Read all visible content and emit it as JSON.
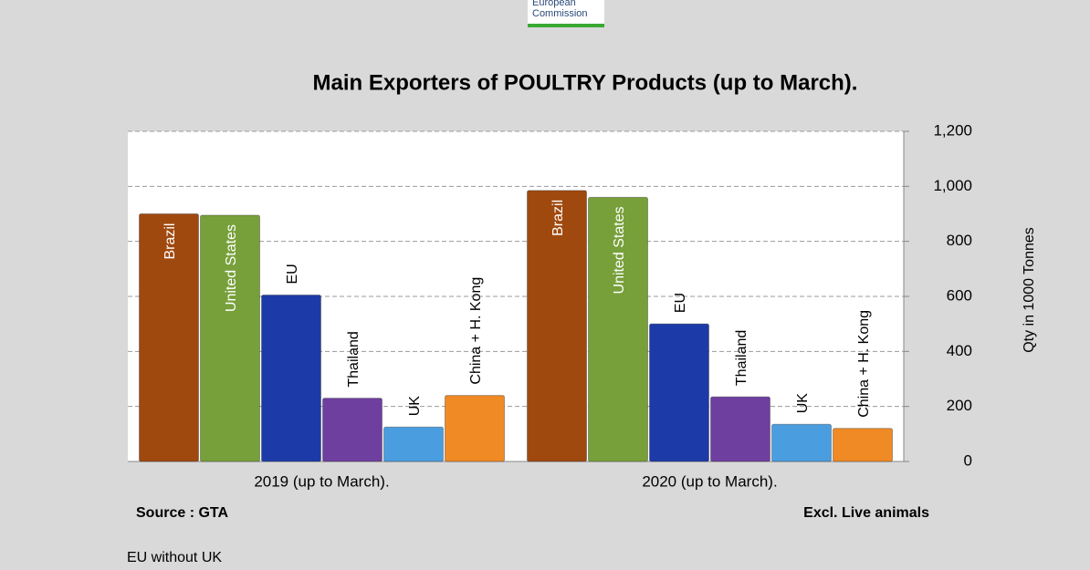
{
  "logo": {
    "lines": [
      "European",
      "Commission"
    ]
  },
  "chart_data": {
    "type": "bar",
    "title": "Main Exporters of POULTRY Products (up to March).",
    "categories": [
      "2019 (up to March).",
      "2020 (up to March)."
    ],
    "series": [
      {
        "name": "Brazil",
        "color": "#a0490f",
        "values": [
          900,
          985
        ]
      },
      {
        "name": "United States",
        "color": "#77a03a",
        "values": [
          895,
          960
        ]
      },
      {
        "name": "EU",
        "color": "#1c3ba8",
        "values": [
          605,
          500
        ]
      },
      {
        "name": "Thailand",
        "color": "#6f3fa0",
        "values": [
          230,
          235
        ]
      },
      {
        "name": "UK",
        "color": "#4a9ee0",
        "values": [
          125,
          135
        ]
      },
      {
        "name": "China + H. Kong",
        "color": "#f08a24",
        "values": [
          240,
          120
        ]
      }
    ],
    "ylabel": "Qty in 1000 Tonnes",
    "ylim": [
      0,
      1200
    ],
    "yticks": [
      0,
      200,
      400,
      600,
      800,
      {
        "value": 1000,
        "label": "1,000"
      },
      {
        "value": 1200,
        "label": "1,200"
      }
    ],
    "grid": true,
    "source": "Source : GTA",
    "note": "Excl. Live animals"
  },
  "footnote": "EU without UK"
}
